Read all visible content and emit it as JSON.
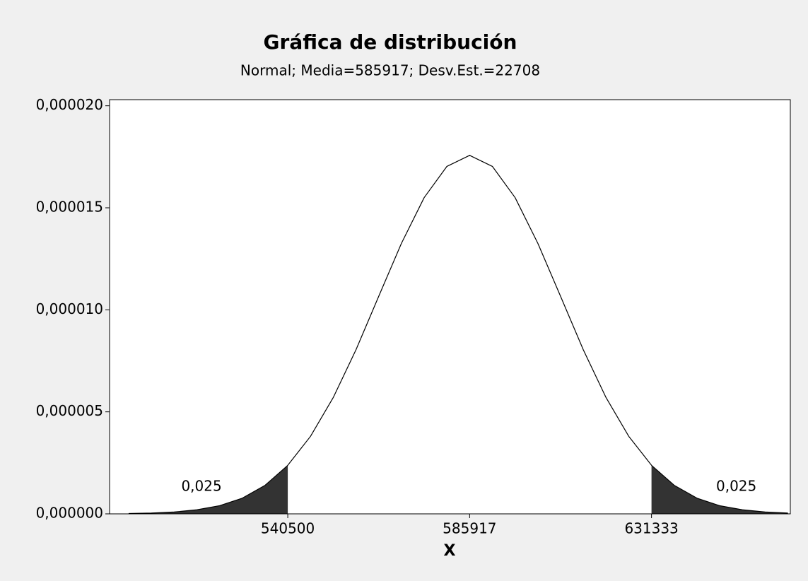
{
  "chart_data": {
    "type": "distribution",
    "title": "Gráfica de distribución",
    "subtitle": "Normal; Media=585917; Desv.Est.=22708",
    "x_label": "X",
    "x": [
      500762,
      506439,
      512116,
      517793,
      523470,
      529147,
      534824,
      540501,
      546178,
      551855,
      557532,
      563209,
      568886,
      574563,
      580240,
      585917,
      591594,
      597271,
      602948,
      608625,
      614302,
      619979,
      625656,
      631333,
      637010,
      642687,
      648364,
      654041,
      659718,
      665395
    ],
    "values": [
      2e-08,
      4e-08,
      9e-08,
      2e-07,
      4e-07,
      7.7e-07,
      1.4e-06,
      2.38e-06,
      3.8e-06,
      5.7e-06,
      8.04e-06,
      1.066e-05,
      1.326e-05,
      1.55e-05,
      1.703e-05,
      1.757e-05,
      1.703e-05,
      1.55e-05,
      1.326e-05,
      1.066e-05,
      8.04e-06,
      5.7e-06,
      3.8e-06,
      2.38e-06,
      1.4e-06,
      7.7e-07,
      4e-07,
      2e-07,
      9e-08,
      4e-08
    ],
    "color": "#000000",
    "fill_color": "#333333",
    "tails": [
      {
        "side": "left",
        "bound": 540500,
        "area": 0.025,
        "label": "0,025"
      },
      {
        "side": "right",
        "bound": 631333,
        "area": 0.025,
        "label": "0,025"
      }
    ],
    "xlim": [
      496000,
      666000
    ],
    "xticks": [
      540500,
      585917,
      631333
    ],
    "ylim": [
      0,
      2.03e-05
    ],
    "yticks": [
      {
        "value": 0,
        "label": "0,000000"
      },
      {
        "value": 5e-06,
        "label": "0,000005"
      },
      {
        "value": 1e-05,
        "label": "0,000010"
      },
      {
        "value": 1.5e-05,
        "label": "0,000015"
      },
      {
        "value": 2e-05,
        "label": "0,000020"
      }
    ]
  }
}
